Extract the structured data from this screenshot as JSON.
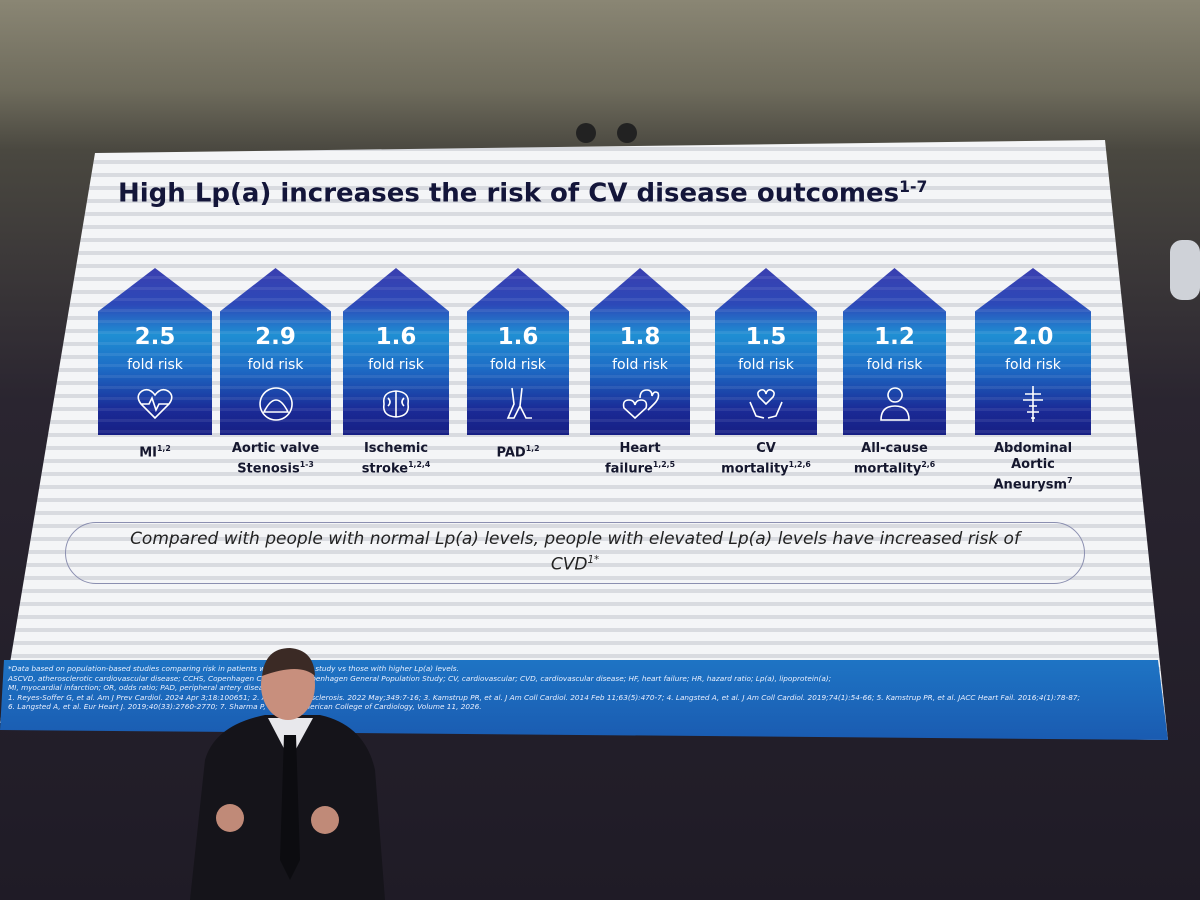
{
  "title": {
    "text": "High Lp(a) increases the risk of CV disease outcomes",
    "sup": "1-7"
  },
  "cards": [
    {
      "value": "2.5",
      "unit": "fold risk",
      "label": [
        "MI"
      ],
      "sup": "1,2"
    },
    {
      "value": "2.9",
      "unit": "fold risk",
      "label": [
        "Aortic valve",
        "Stenosis"
      ],
      "sup": "1-3"
    },
    {
      "value": "1.6",
      "unit": "fold risk",
      "label": [
        "Ischemic",
        "stroke"
      ],
      "sup": "1,2,4"
    },
    {
      "value": "1.6",
      "unit": "fold risk",
      "label": [
        "PAD"
      ],
      "sup": "1,2"
    },
    {
      "value": "1.8",
      "unit": "fold risk",
      "label": [
        "Heart",
        "failure"
      ],
      "sup": "1,2,5"
    },
    {
      "value": "1.5",
      "unit": "fold risk",
      "label": [
        "CV",
        "mortality"
      ],
      "sup": "1,2,6"
    },
    {
      "value": "1.2",
      "unit": "fold risk",
      "label": [
        "All-cause",
        "mortality"
      ],
      "sup": "2,6"
    },
    {
      "value": "2.0",
      "unit": "fold risk",
      "label": [
        "Abdominal",
        "Aortic",
        "Aneurysm"
      ],
      "sup": "7"
    }
  ],
  "callout": {
    "text": "Compared with people with normal Lp(a) levels, people with elevated Lp(a) levels have increased risk of CVD",
    "sup": "1*"
  },
  "footnotes": [
    "*Data based on population-based studies comparing risk in patients with ... in each study vs those with higher Lp(a) levels.",
    "ASCVD, atherosclerotic cardiovascular disease; CCHS, Copenhagen City ... GPS, Copenhagen General Population Study; CV, cardiovascular; CVD, cardiovascular disease; HF, heart failure; HR, hazard ratio; Lp(a), lipoprotein(a);",
    "MI, myocardial infarction; OR, odds ratio; PAD, peripheral artery disease.",
    "1. Reyes-Soffer G, et al. Am J Prev Cardiol. 2024 Apr 3;18:100651; 2. Arsen... therosclerosis. 2022 May;349:7-16; 3. Kamstrup PR, et al. J Am Coll Cardiol. 2014 Feb 11;63(5):470-7; 4. Langsted A, et al. J Am Coll Cardiol. 2019;74(1):54-66; 5. Kamstrup PR, et al. JACC Heart Fail. 2016;4(1):78-87;",
    "6. Langsted A, et al. Eur Heart J. 2019;40(33):2760-2770; 7. Sharma P, et al. ... American College of Cardiology, Volume 11, 2026."
  ]
}
